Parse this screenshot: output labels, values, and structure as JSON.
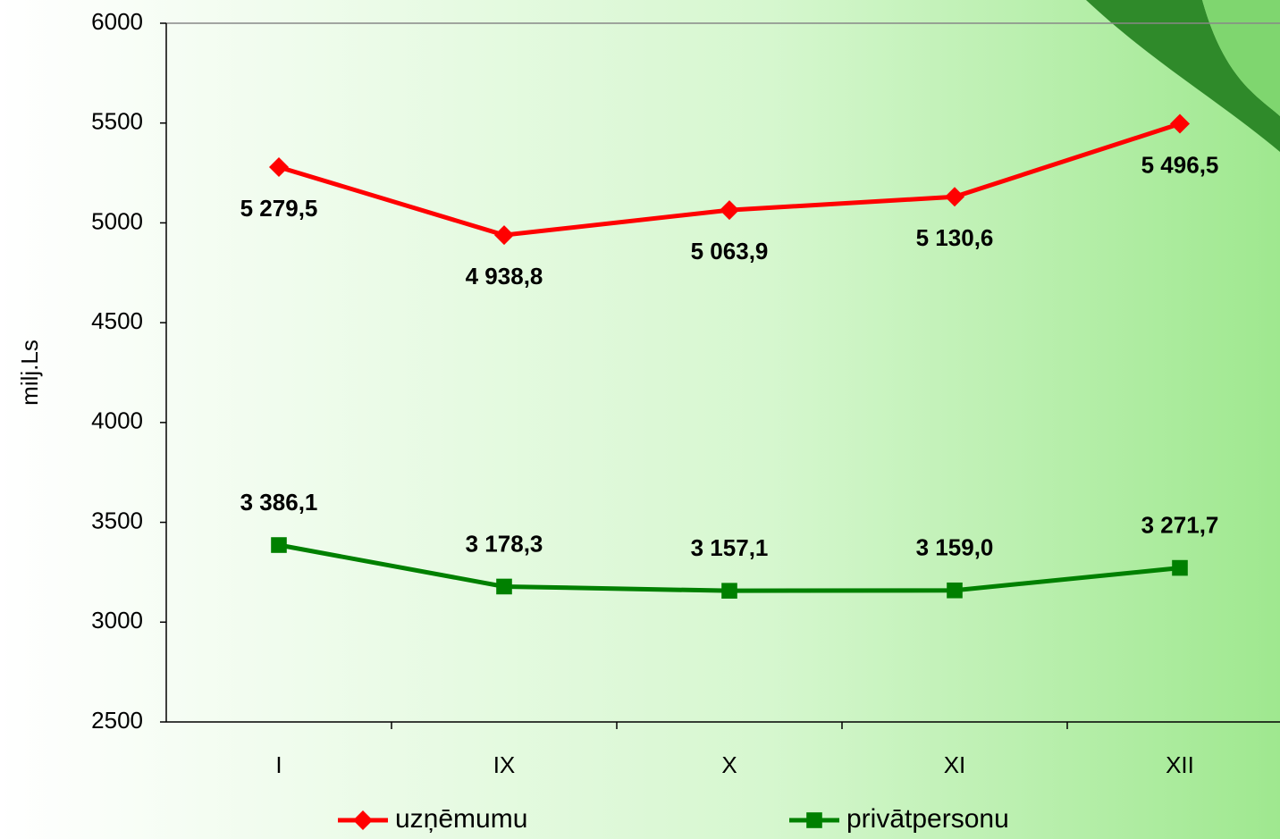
{
  "chart_data": {
    "type": "line",
    "y_label": "milj.Ls",
    "categories": [
      "I",
      "IX",
      "X",
      "XI",
      "XII"
    ],
    "series": [
      {
        "name": "uzņēmumu",
        "color": "#ff0000",
        "marker": "diamond",
        "values": [
          5279.5,
          4938.8,
          5063.9,
          5130.6,
          5496.5
        ],
        "value_labels": [
          "5 279,5",
          "4 938,8",
          "5 063,9",
          "5 130,6",
          "5 496,5"
        ]
      },
      {
        "name": "privātpersonu",
        "color": "#008000",
        "marker": "square",
        "values": [
          3386.1,
          3178.3,
          3157.1,
          3159.0,
          3271.7
        ],
        "value_labels": [
          "3 386,1",
          "3 178,3",
          "3 157,1",
          "3 159,0",
          "3 271,7"
        ]
      }
    ],
    "ylim": [
      2500,
      6000
    ],
    "yticks": [
      2500,
      3000,
      3500,
      4000,
      4500,
      5000,
      5500,
      6000
    ],
    "grid": false
  }
}
